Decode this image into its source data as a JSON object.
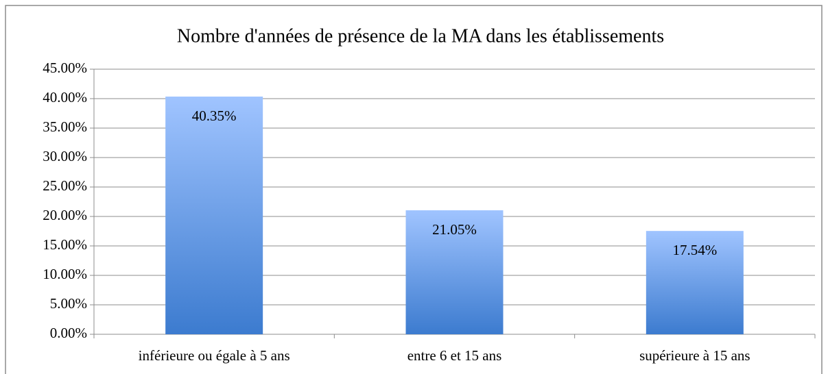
{
  "chart_data": {
    "type": "bar",
    "title": "Nombre d'années de présence de la MA dans les établissements",
    "categories": [
      "inférieure ou égale à 5 ans",
      "entre 6 et 15 ans",
      "supérieure à 15 ans"
    ],
    "values": [
      40.35,
      21.05,
      17.54
    ],
    "value_labels": [
      "40.35%",
      "21.05%",
      "17.54%"
    ],
    "color": "#4f86d6",
    "ylim": [
      0,
      45
    ],
    "yticks": [
      {
        "value": 0,
        "label": "0.00%"
      },
      {
        "value": 5,
        "label": "5.00%"
      },
      {
        "value": 10,
        "label": "10.00%"
      },
      {
        "value": 15,
        "label": "15.00%"
      },
      {
        "value": 20,
        "label": "20.00%"
      },
      {
        "value": 25,
        "label": "25.00%"
      },
      {
        "value": 30,
        "label": "30.00%"
      },
      {
        "value": 35,
        "label": "35.00%"
      },
      {
        "value": 40,
        "label": "40.00%"
      },
      {
        "value": 45,
        "label": "45.00%"
      }
    ],
    "grid": true
  }
}
